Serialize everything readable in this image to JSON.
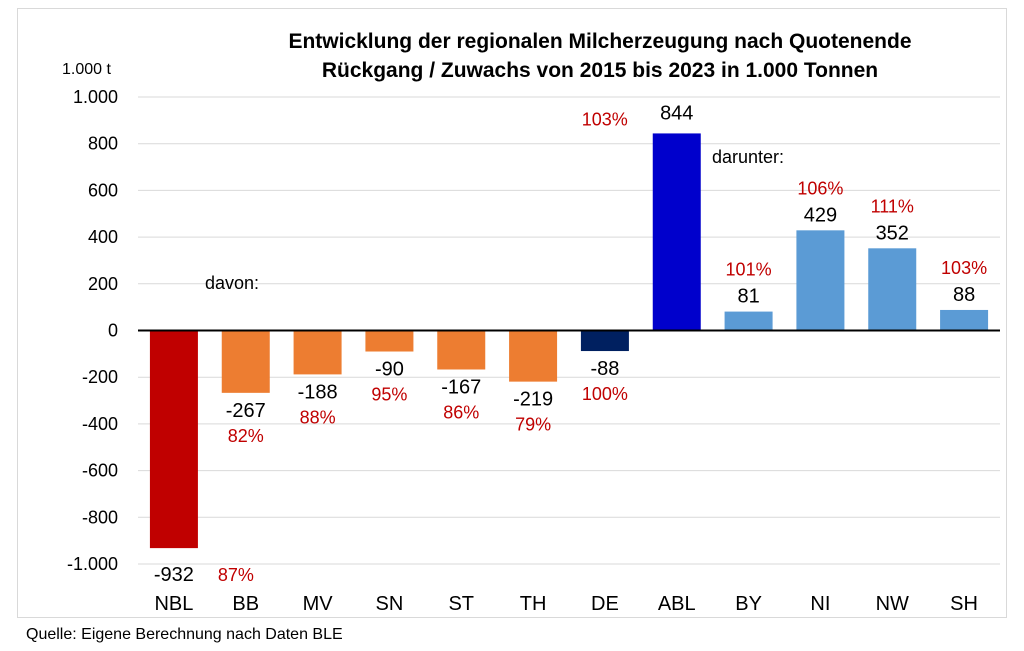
{
  "chart_data": {
    "type": "bar",
    "title": "Entwicklung der regionalen Milcherzeugung nach Quotenende",
    "subtitle": "Rückgang / Zuwachs von 2015 bis 2023 in 1.000 Tonnen",
    "ylabel": "1.000 t",
    "xlabel": "",
    "ylim": [
      -1000,
      1000
    ],
    "yticks": [
      1000,
      800,
      600,
      400,
      200,
      0,
      -200,
      -400,
      -600,
      -800,
      -1000
    ],
    "ytick_labels": [
      "1.000",
      "800",
      "600",
      "400",
      "200",
      "0",
      "-200",
      "-400",
      "-600",
      "-800",
      "-1.000"
    ],
    "grid": true,
    "categories": [
      "NBL",
      "BB",
      "MV",
      "SN",
      "ST",
      "TH",
      "DE",
      "ABL",
      "BY",
      "NI",
      "NW",
      "SH"
    ],
    "values": [
      -932,
      -267,
      -188,
      -90,
      -167,
      -219,
      -88,
      844,
      81,
      429,
      352,
      88
    ],
    "value_labels": [
      "-932",
      "-267",
      "-188",
      "-90",
      "-167",
      "-219",
      "-88",
      "844",
      "81",
      "429",
      "352",
      "88"
    ],
    "percent_labels": [
      "87%",
      "82%",
      "88%",
      "95%",
      "86%",
      "79%",
      "100%",
      "103%",
      "101%",
      "106%",
      "111%",
      "103%"
    ],
    "annotations": [
      "davon:",
      "darunter:"
    ]
  },
  "colors": {
    "NBL": "#c00000",
    "BB": "#ed7d31",
    "MV": "#ed7d31",
    "SN": "#ed7d31",
    "ST": "#ed7d31",
    "TH": "#ed7d31",
    "DE": "#002060",
    "ABL": "#0000cc",
    "BY": "#5b9bd5",
    "NI": "#5b9bd5",
    "NW": "#5b9bd5",
    "SH": "#5b9bd5",
    "percent_text": "#c00000",
    "grid": "#d9d9d9"
  },
  "source": "Quelle: Eigene Berechnung nach Daten BLE"
}
